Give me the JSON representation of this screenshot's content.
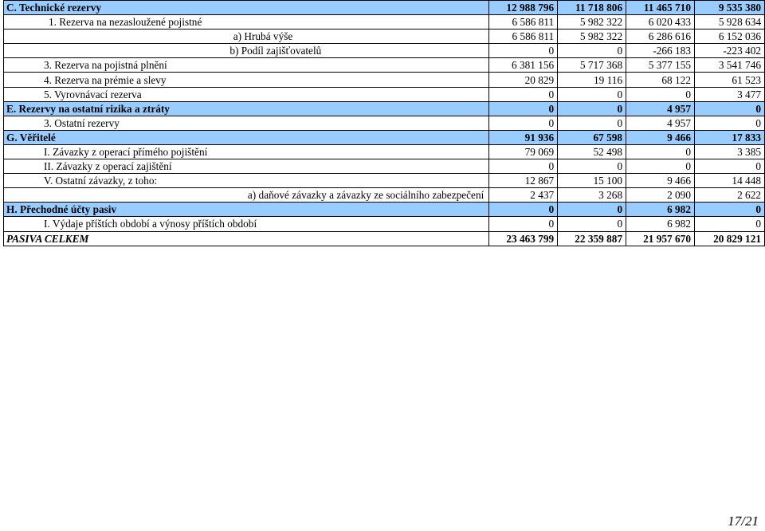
{
  "rows": [
    {
      "label": "C. Technické rezervy",
      "v": [
        "12 988 796",
        "11 718 806",
        "11 465 710",
        "9 535 380"
      ]
    },
    {
      "label": "1. Rezerva na nezasloužené pojistné",
      "v": [
        "6 586 811",
        "5 982 322",
        "6 020 433",
        "5 928 634"
      ]
    },
    {
      "label": "a) Hrubá výše",
      "v": [
        "6 586 811",
        "5 982 322",
        "6 286 616",
        "6 152 036"
      ]
    },
    {
      "label": "b) Podíl zajišťovatelů",
      "v": [
        "0",
        "0",
        "-266 183",
        "-223 402"
      ]
    },
    {
      "label": "3. Rezerva na pojistná plnění",
      "v": [
        "6 381 156",
        "5 717 368",
        "5 377 155",
        "3 541 746"
      ]
    },
    {
      "label": "4. Rezerva na prémie a slevy",
      "v": [
        "20 829",
        "19 116",
        "68 122",
        "61 523"
      ]
    },
    {
      "label": "5. Vyrovnávací rezerva",
      "v": [
        "0",
        "0",
        "0",
        "3 477"
      ]
    },
    {
      "label": "E. Rezervy na ostatní rizika a ztráty",
      "v": [
        "0",
        "0",
        "4 957",
        "0"
      ]
    },
    {
      "label": "3. Ostatní rezervy",
      "v": [
        "0",
        "0",
        "4 957",
        "0"
      ]
    },
    {
      "label": "G. Věřitelé",
      "v": [
        "91 936",
        "67 598",
        "9 466",
        "17 833"
      ]
    },
    {
      "label": "I. Závazky z operací přímého pojištění",
      "v": [
        "79 069",
        "52 498",
        "0",
        "3 385"
      ]
    },
    {
      "label": "II. Závazky z operací zajištění",
      "v": [
        "0",
        "0",
        "0",
        "0"
      ]
    },
    {
      "label": "V. Ostatní závazky, z toho:",
      "v": [
        "12 867",
        "15 100",
        "9 466",
        "14 448"
      ]
    },
    {
      "label": "a) daňové závazky a závazky ze sociálního zabezpečení",
      "v": [
        "2 437",
        "3 268",
        "2 090",
        "2 622"
      ]
    },
    {
      "label": "H. Přechodné účty pasiv",
      "v": [
        "0",
        "0",
        "6 982",
        "0"
      ]
    },
    {
      "label": "I. Výdaje příštích období a výnosy příštích období",
      "v": [
        "0",
        "0",
        "6 982",
        "0"
      ]
    },
    {
      "label": "PASIVA CELKEM",
      "v": [
        "23 463 799",
        "22 359 887",
        "21 957 670",
        "20 829 121"
      ]
    }
  ],
  "page_number": "17/21",
  "colors": {
    "section_header_bg": "#99ccff"
  }
}
